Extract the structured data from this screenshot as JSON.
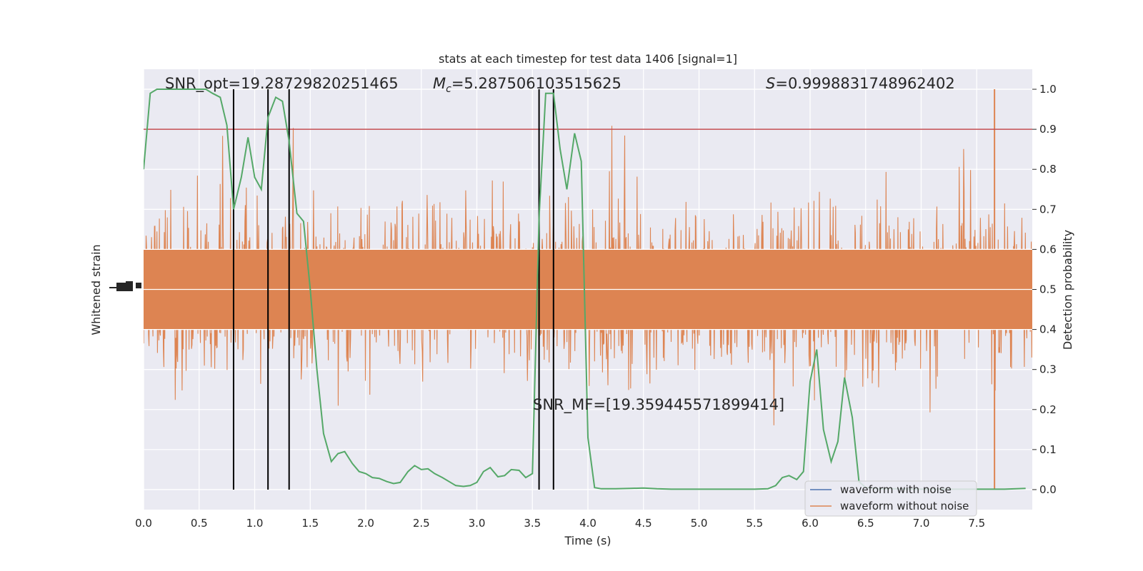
{
  "chart_data": {
    "type": "line",
    "title": "stats at each timestep for test data 1406 [signal=1]",
    "xlabel": "Time (s)",
    "ylabel_left": "Whitened strain",
    "ylabel_right": "Detection probability",
    "xlim": [
      0.0,
      8.0
    ],
    "ylim_right": [
      -0.05,
      1.05
    ],
    "grid": true,
    "x_ticks": [
      "0.0",
      "0.5",
      "1.0",
      "1.5",
      "2.0",
      "2.5",
      "3.0",
      "3.5",
      "4.0",
      "4.5",
      "5.0",
      "5.5",
      "6.0",
      "6.5",
      "7.0",
      "7.5"
    ],
    "y_ticks_right": [
      "0.0",
      "0.1",
      "0.2",
      "0.3",
      "0.4",
      "0.5",
      "0.6",
      "0.7",
      "0.8",
      "0.9",
      "1.0"
    ],
    "annotations": {
      "snr_opt": "SNR_opt=19.28729820251465",
      "mc_symbol": "M",
      "mc_sub": "c",
      "mc_value": "=5.287506103515625",
      "s_symbol": "S",
      "s_value": "=0.9998831748962402",
      "snr_mf": "SNR_MF=[19.359445571899414]"
    },
    "legend": {
      "placement": "lower-right",
      "entries": [
        {
          "label": "waveform with noise",
          "color": "#4c72b0"
        },
        {
          "label": "waveform without noise",
          "color": "#dd8452"
        }
      ]
    },
    "threshold": {
      "value": 0.9,
      "color": "#c44e52"
    },
    "vlines_x": [
      0.81,
      1.12,
      1.31,
      3.56,
      3.69
    ],
    "strain": {
      "center": 0.5,
      "spread_approx": 0.2,
      "color": "#dd8452"
    },
    "probability_series": {
      "color": "#55a868",
      "x": [
        0.0,
        0.06,
        0.12,
        0.19,
        0.25,
        0.31,
        0.38,
        0.44,
        0.5,
        0.56,
        0.62,
        0.69,
        0.75,
        0.81,
        0.88,
        0.94,
        1.0,
        1.06,
        1.12,
        1.19,
        1.25,
        1.31,
        1.38,
        1.44,
        1.5,
        1.56,
        1.62,
        1.69,
        1.75,
        1.81,
        1.88,
        1.94,
        2.0,
        2.06,
        2.12,
        2.19,
        2.25,
        2.31,
        2.38,
        2.44,
        2.5,
        2.56,
        2.62,
        2.69,
        2.75,
        2.81,
        2.88,
        2.94,
        3.0,
        3.06,
        3.12,
        3.19,
        3.25,
        3.31,
        3.38,
        3.44,
        3.5,
        3.56,
        3.62,
        3.69,
        3.75,
        3.81,
        3.88,
        3.94,
        4.0,
        4.06,
        4.12,
        4.25,
        4.38,
        4.5,
        4.62,
        4.75,
        5.0,
        5.25,
        5.5,
        5.62,
        5.69,
        5.75,
        5.81,
        5.88,
        5.94,
        6.0,
        6.06,
        6.12,
        6.19,
        6.25,
        6.31,
        6.38,
        6.44,
        6.5,
        6.62,
        6.75,
        7.0,
        7.25,
        7.5,
        7.75,
        7.94
      ],
      "y": [
        0.8,
        0.99,
        1.0,
        1.0,
        1.0,
        1.0,
        1.0,
        1.0,
        1.0,
        1.0,
        0.99,
        0.98,
        0.91,
        0.7,
        0.78,
        0.88,
        0.78,
        0.75,
        0.93,
        0.98,
        0.97,
        0.87,
        0.69,
        0.67,
        0.5,
        0.3,
        0.14,
        0.07,
        0.09,
        0.095,
        0.065,
        0.045,
        0.04,
        0.03,
        0.028,
        0.02,
        0.015,
        0.018,
        0.045,
        0.06,
        0.05,
        0.052,
        0.04,
        0.03,
        0.02,
        0.01,
        0.008,
        0.01,
        0.018,
        0.045,
        0.055,
        0.032,
        0.035,
        0.05,
        0.048,
        0.03,
        0.04,
        0.68,
        0.99,
        0.99,
        0.85,
        0.75,
        0.89,
        0.82,
        0.13,
        0.005,
        0.002,
        0.002,
        0.003,
        0.004,
        0.002,
        0.001,
        0.001,
        0.001,
        0.001,
        0.002,
        0.01,
        0.03,
        0.035,
        0.025,
        0.045,
        0.27,
        0.35,
        0.15,
        0.07,
        0.12,
        0.28,
        0.18,
        0.02,
        0.005,
        0.002,
        0.002,
        0.001,
        0.001,
        0.001,
        0.001,
        0.003
      ]
    }
  }
}
